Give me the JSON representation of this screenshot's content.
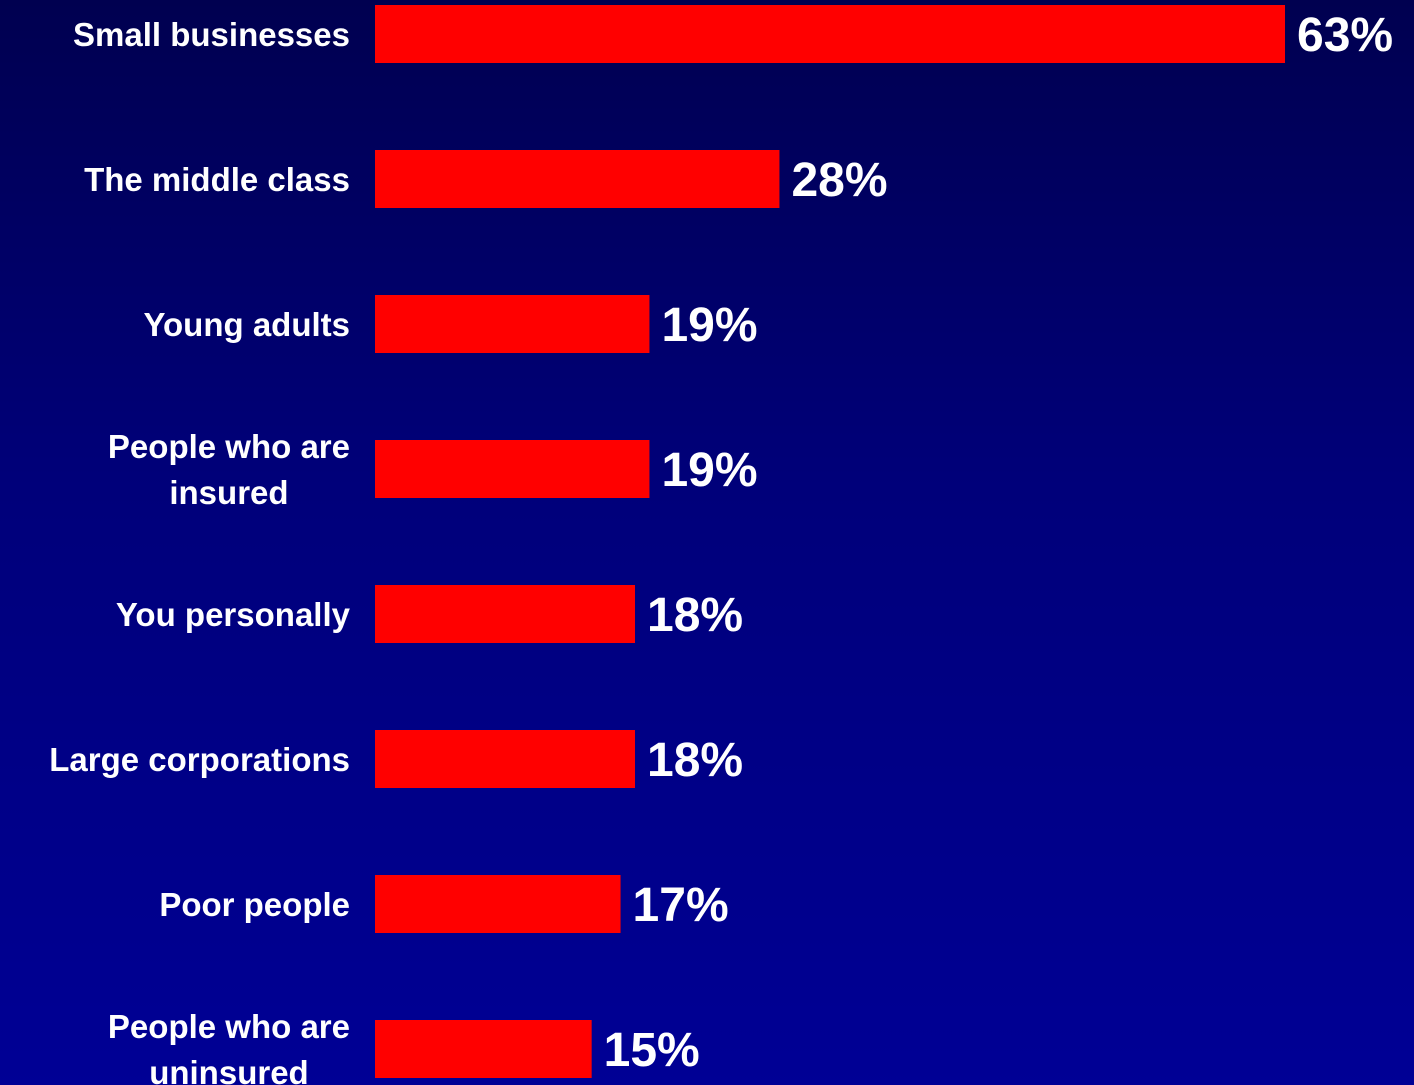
{
  "chart_data": {
    "type": "bar",
    "orientation": "horizontal",
    "categories": [
      [
        "Small businesses"
      ],
      [
        "The middle class"
      ],
      [
        "Young adults"
      ],
      [
        "People who are",
        "insured"
      ],
      [
        "You personally"
      ],
      [
        "Large corporations"
      ],
      [
        "Poor people"
      ],
      [
        "People who are",
        "uninsured"
      ]
    ],
    "values": [
      63,
      28,
      19,
      19,
      18,
      18,
      17,
      15
    ],
    "value_labels": [
      "63%",
      "28%",
      "19%",
      "19%",
      "18%",
      "18%",
      "17%",
      "15%"
    ],
    "title": "",
    "xlabel": "",
    "ylabel": "",
    "xlim": [
      0,
      63
    ],
    "grid": false,
    "legend": "none",
    "bar_color": "#ff0000",
    "background_color": "#000080",
    "text_color": "#ffffff"
  }
}
